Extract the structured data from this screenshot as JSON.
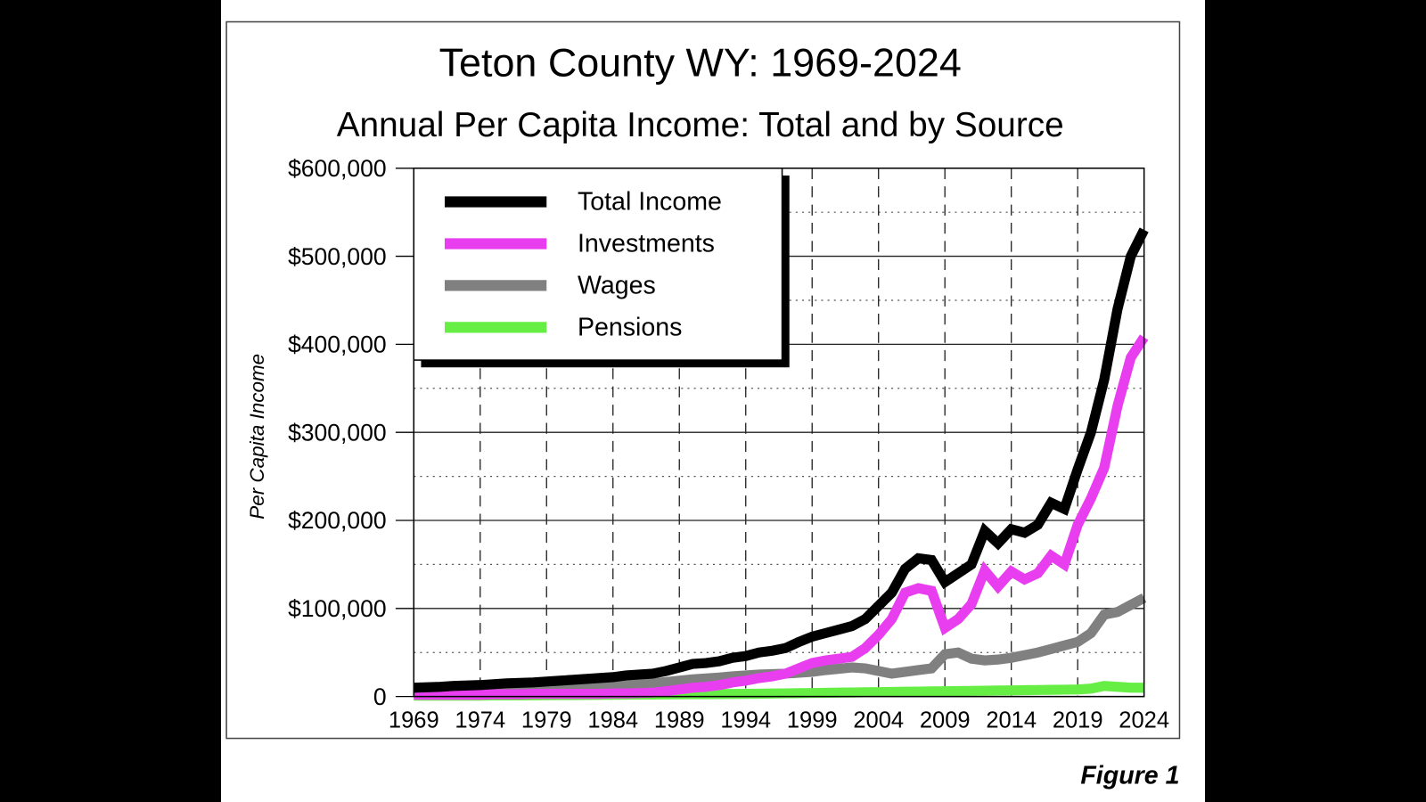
{
  "figure_label": "Figure 1",
  "chart_data": {
    "type": "line",
    "title": "Teton County WY: 1969-2024",
    "subtitle": "Annual Per Capita Income: Total and by Source",
    "xlabel": "",
    "ylabel": "Per Capita Income",
    "xlim": [
      1969,
      2024
    ],
    "ylim": [
      0,
      600000
    ],
    "x_ticks": [
      "1969",
      "1974",
      "1979",
      "1984",
      "1989",
      "1994",
      "1999",
      "2004",
      "2009",
      "2014",
      "2019",
      "2024"
    ],
    "y_ticks": [
      "0",
      "$100,000",
      "$200,000",
      "$300,000",
      "$400,000",
      "$500,000",
      "$600,000"
    ],
    "grid": true,
    "legend_position": "top-left",
    "x": [
      1969,
      1970,
      1971,
      1972,
      1973,
      1974,
      1975,
      1976,
      1977,
      1978,
      1979,
      1980,
      1981,
      1982,
      1983,
      1984,
      1985,
      1986,
      1987,
      1988,
      1989,
      1990,
      1991,
      1992,
      1993,
      1994,
      1995,
      1996,
      1997,
      1998,
      1999,
      2000,
      2001,
      2002,
      2003,
      2004,
      2005,
      2006,
      2007,
      2008,
      2009,
      2010,
      2011,
      2012,
      2013,
      2014,
      2015,
      2016,
      2017,
      2018,
      2019,
      2020,
      2021,
      2022,
      2023,
      2024
    ],
    "series": [
      {
        "name": "Total Income",
        "color": "#000000",
        "values": [
          10000,
          10500,
          11000,
          12000,
          12500,
          13000,
          14000,
          15000,
          15500,
          16000,
          17000,
          18000,
          19000,
          20000,
          21000,
          22000,
          24000,
          25000,
          26000,
          29000,
          33000,
          37000,
          38000,
          40000,
          44000,
          46000,
          50000,
          52000,
          55000,
          62000,
          68000,
          72000,
          76000,
          80000,
          88000,
          103000,
          118000,
          145000,
          157000,
          155000,
          130000,
          140000,
          150000,
          188000,
          174000,
          190000,
          186000,
          195000,
          220000,
          213000,
          258000,
          300000,
          360000,
          440000,
          500000,
          530000
        ]
      },
      {
        "name": "Investments",
        "color": "#e83ef0",
        "values": [
          2000,
          2000,
          2000,
          2000,
          2000,
          2000,
          2500,
          2500,
          2500,
          3000,
          3000,
          3000,
          3000,
          3000,
          3000,
          3500,
          3500,
          4000,
          4500,
          6000,
          8000,
          10000,
          11000,
          13000,
          16000,
          18000,
          21000,
          23000,
          26000,
          32000,
          38000,
          41000,
          43000,
          45000,
          55000,
          70000,
          88000,
          118000,
          123000,
          120000,
          78000,
          88000,
          105000,
          143000,
          125000,
          142000,
          133000,
          140000,
          160000,
          150000,
          195000,
          225000,
          260000,
          330000,
          385000,
          408000
        ]
      },
      {
        "name": "Wages",
        "color": "#808080",
        "values": [
          5000,
          5500,
          6000,
          6500,
          7000,
          7500,
          8000,
          8500,
          9000,
          9500,
          10000,
          10500,
          11000,
          11500,
          12000,
          12500,
          13000,
          14000,
          15000,
          16500,
          18000,
          19500,
          20500,
          21500,
          23000,
          24000,
          25000,
          25500,
          26000,
          27000,
          28000,
          30000,
          31500,
          33000,
          32000,
          29000,
          26000,
          28000,
          30000,
          32000,
          48000,
          50000,
          43000,
          41000,
          42000,
          44000,
          47000,
          50000,
          54000,
          58000,
          62000,
          72000,
          93000,
          96000,
          104000,
          112000
        ]
      },
      {
        "name": "Pensions",
        "color": "#66ee44",
        "values": [
          1000,
          1000,
          1000,
          1000,
          1000,
          1000,
          1200,
          1200,
          1300,
          1400,
          1500,
          1600,
          1700,
          1800,
          1900,
          2000,
          2100,
          2200,
          2300,
          2400,
          2500,
          2600,
          2700,
          2800,
          2900,
          3000,
          3200,
          3400,
          3600,
          3800,
          4000,
          4200,
          4400,
          4600,
          4800,
          5000,
          5200,
          5400,
          5600,
          5800,
          6000,
          6200,
          6400,
          6600,
          6800,
          7000,
          7200,
          7400,
          7600,
          7800,
          8000,
          9000,
          12000,
          11000,
          10000,
          10000
        ]
      }
    ]
  }
}
